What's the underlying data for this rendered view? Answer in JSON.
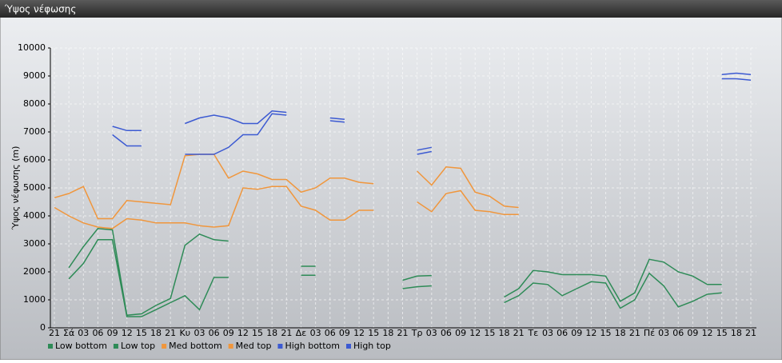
{
  "window_title": "Ύψος νέφωσης",
  "chart_data": {
    "type": "line",
    "y_label": "Ύψος νέφωσης (m)",
    "categories": [
      "21",
      "Σά",
      "03",
      "06",
      "09",
      "12",
      "15",
      "18",
      "21",
      "Κυ",
      "03",
      "06",
      "09",
      "12",
      "15",
      "18",
      "21",
      "Δε",
      "03",
      "06",
      "09",
      "12",
      "15",
      "18",
      "21",
      "Τρ",
      "03",
      "06",
      "09",
      "12",
      "15",
      "18",
      "21",
      "Τε",
      "03",
      "06",
      "09",
      "12",
      "15",
      "18",
      "21",
      "Πέ",
      "03",
      "06",
      "09",
      "12",
      "15",
      "18",
      "21"
    ],
    "ylim": [
      0,
      10000
    ],
    "yticks": [
      0,
      1000,
      2000,
      3000,
      4000,
      5000,
      6000,
      7000,
      8000,
      9000,
      10000
    ],
    "grid": true,
    "legend": "bottom-left",
    "series": [
      {
        "name": "Low bottom",
        "color": "#2e8b57",
        "values": [
          null,
          1750,
          2300,
          3150,
          3150,
          400,
          400,
          650,
          900,
          1150,
          650,
          1800,
          1800,
          null,
          null,
          null,
          null,
          1880,
          1880,
          null,
          null,
          null,
          null,
          null,
          1400,
          1470,
          1500,
          null,
          null,
          null,
          null,
          900,
          1150,
          1600,
          1550,
          1150,
          1400,
          1650,
          1600,
          700,
          1000,
          1950,
          1500,
          750,
          950,
          1200,
          1250,
          null,
          null
        ]
      },
      {
        "name": "Low top",
        "color": "#2e8b57",
        "values": [
          null,
          2150,
          2900,
          3550,
          3500,
          450,
          500,
          800,
          1050,
          2950,
          3350,
          3150,
          3100,
          null,
          null,
          null,
          null,
          2200,
          2200,
          null,
          null,
          null,
          null,
          null,
          1700,
          1850,
          1870,
          null,
          null,
          null,
          null,
          1100,
          1400,
          2050,
          2000,
          1900,
          1900,
          1900,
          1850,
          950,
          1250,
          2450,
          2350,
          2000,
          1850,
          1550,
          1550,
          null,
          null
        ]
      },
      {
        "name": "Med bottom",
        "color": "#f0963c",
        "values": [
          4300,
          4000,
          3750,
          3600,
          3550,
          3900,
          3850,
          3750,
          3750,
          3750,
          3650,
          3600,
          3650,
          5000,
          4950,
          5050,
          5050,
          4350,
          4200,
          3850,
          3850,
          4200,
          4200,
          null,
          null,
          4500,
          4150,
          4800,
          4900,
          4200,
          4150,
          4050,
          4050,
          null,
          null,
          null,
          null,
          null,
          null,
          null,
          null,
          null,
          null,
          null,
          null,
          null,
          null,
          null,
          null
        ]
      },
      {
        "name": "Med top",
        "color": "#f0963c",
        "values": [
          4650,
          4800,
          5050,
          3900,
          3900,
          4550,
          4500,
          4450,
          4400,
          6150,
          6200,
          6200,
          5350,
          5600,
          5500,
          5300,
          5300,
          4850,
          5000,
          5350,
          5350,
          5200,
          5150,
          null,
          null,
          5600,
          5100,
          5750,
          5700,
          4850,
          4700,
          4350,
          4300,
          null,
          null,
          null,
          null,
          null,
          null,
          null,
          null,
          null,
          null,
          null,
          null,
          null,
          null,
          null,
          null
        ]
      },
      {
        "name": "High bottom",
        "color": "#3c5ad2",
        "values": [
          null,
          null,
          null,
          null,
          6900,
          6500,
          6500,
          null,
          null,
          6200,
          6200,
          6200,
          6450,
          6900,
          6900,
          7650,
          7600,
          null,
          null,
          7400,
          7350,
          null,
          null,
          null,
          null,
          6200,
          6300,
          null,
          null,
          null,
          null,
          null,
          null,
          null,
          null,
          null,
          null,
          null,
          null,
          null,
          null,
          null,
          null,
          null,
          null,
          null,
          8900,
          8900,
          8850
        ]
      },
      {
        "name": "High top",
        "color": "#3c5ad2",
        "values": [
          null,
          null,
          null,
          null,
          7200,
          7050,
          7050,
          null,
          null,
          7300,
          7500,
          7600,
          7500,
          7300,
          7300,
          7750,
          7700,
          null,
          null,
          7500,
          7450,
          null,
          null,
          null,
          null,
          6350,
          6450,
          null,
          null,
          null,
          null,
          null,
          null,
          null,
          null,
          null,
          null,
          null,
          null,
          null,
          null,
          null,
          null,
          null,
          null,
          null,
          9050,
          9100,
          9050
        ]
      }
    ]
  }
}
